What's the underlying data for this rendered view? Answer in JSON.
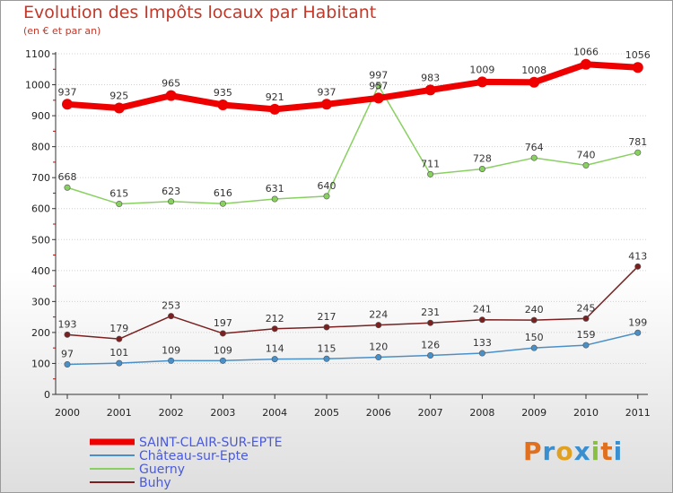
{
  "title": "Evolution des Impôts locaux par Habitant",
  "subtitle": "(en € et par an)",
  "logo_text": "Proxiti",
  "chart_data": {
    "type": "line",
    "title": "Evolution des Impôts locaux par Habitant",
    "subtitle": "(en € et par an)",
    "xlabel": "",
    "ylabel": "",
    "ylim": [
      0,
      1100
    ],
    "yticks": [
      0,
      100,
      200,
      300,
      400,
      500,
      600,
      700,
      800,
      900,
      1000,
      1100
    ],
    "grid": true,
    "legend": "bottom-left",
    "x": [
      "2000",
      "2001",
      "2002",
      "2003",
      "2004",
      "2005",
      "2006",
      "2007",
      "2008",
      "2009",
      "2010",
      "2011"
    ],
    "series": [
      {
        "name": "SAINT-CLAIR-SUR-EPTE",
        "color": "#ee0000",
        "values": [
          937,
          925,
          965,
          935,
          921,
          937,
          957,
          983,
          1009,
          1008,
          1066,
          1056
        ]
      },
      {
        "name": "Château-sur-Epte",
        "color": "#4a90c8",
        "values": [
          97,
          101,
          109,
          109,
          114,
          115,
          120,
          126,
          133,
          150,
          159,
          199
        ]
      },
      {
        "name": "Guerny",
        "color": "#88d060",
        "values": [
          668,
          615,
          623,
          616,
          631,
          640,
          997,
          711,
          728,
          764,
          740,
          781
        ]
      },
      {
        "name": "Buhy",
        "color": "#7a2020",
        "values": [
          193,
          179,
          253,
          197,
          212,
          217,
          224,
          231,
          241,
          240,
          245,
          413
        ]
      }
    ]
  }
}
